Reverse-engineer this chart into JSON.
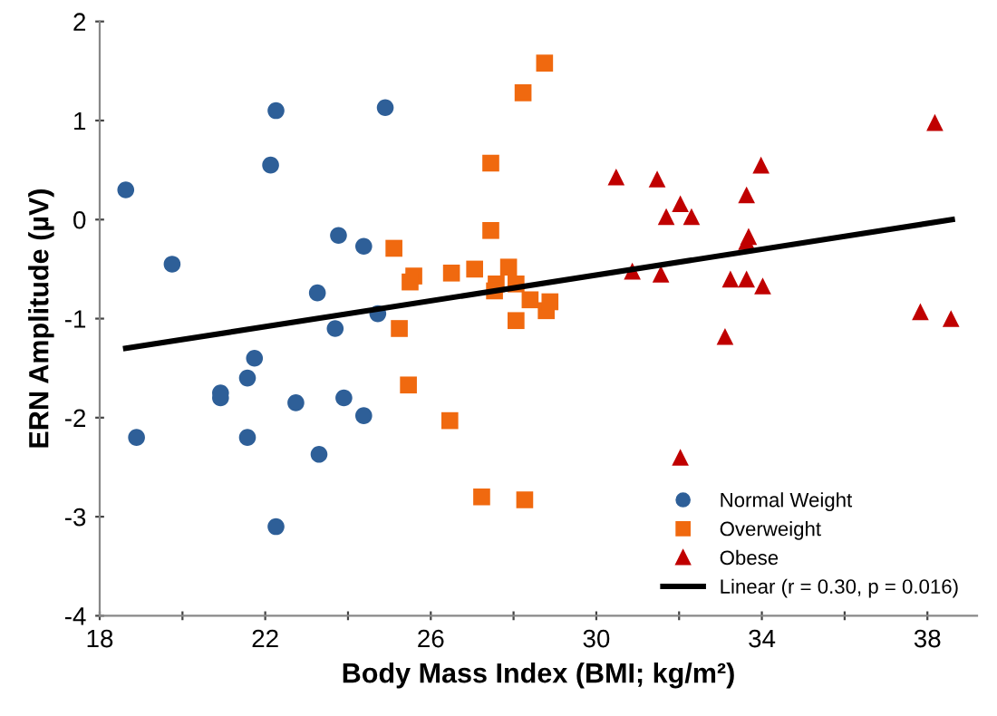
{
  "chart_data": {
    "type": "scatter",
    "xlabel": "Body Mass Index (BMI; kg/m²)",
    "ylabel": "ERN Amplitude (µV)",
    "xlim": [
      18,
      39.2
    ],
    "ylim": [
      -4,
      2
    ],
    "xticks": [
      18,
      {
        "value": 20,
        "label": null
      },
      22,
      {
        "value": 24,
        "label": null
      },
      26,
      {
        "value": 28,
        "label": null
      },
      30,
      {
        "value": 32,
        "label": null
      },
      34,
      {
        "value": 36,
        "label": null
      },
      38
    ],
    "yticks": [
      -4,
      -3,
      -2,
      -1,
      0,
      1,
      2
    ],
    "grid": false,
    "legend": "bottom right",
    "series": [
      {
        "name": "Normal Weight",
        "color": "#2e5f98",
        "marker": "circle",
        "x": [
          18.63,
          18.89,
          19.75,
          20.92,
          20.92,
          21.57,
          21.57,
          21.74,
          22.13,
          22.26,
          22.26,
          22.74,
          23.26,
          23.3,
          23.69,
          23.77,
          23.9,
          24.38,
          24.38,
          24.72,
          24.9
        ],
        "values": [
          0.3,
          -2.2,
          -0.45,
          -1.75,
          -1.8,
          -1.6,
          -2.2,
          -1.4,
          0.55,
          1.1,
          -3.1,
          -1.85,
          -0.74,
          -2.37,
          -1.1,
          -0.16,
          -1.8,
          -1.98,
          -0.27,
          -0.95,
          1.13
        ]
      },
      {
        "name": "Overweight",
        "color": "#f0690f",
        "marker": "square",
        "x": [
          28.75,
          28.23,
          27.45,
          27.45,
          25.11,
          25.59,
          25.5,
          26.5,
          27.06,
          27.88,
          27.58,
          27.54,
          28.06,
          28.4,
          28.06,
          28.79,
          28.88,
          25.24,
          25.46,
          26.46,
          27.23,
          28.27
        ],
        "values": [
          1.58,
          1.28,
          0.57,
          -0.11,
          -0.29,
          -0.57,
          -0.63,
          -0.54,
          -0.5,
          -0.48,
          -0.65,
          -0.72,
          -0.65,
          -0.81,
          -1.02,
          -0.92,
          -0.83,
          -1.1,
          -1.67,
          -2.03,
          -2.8,
          -2.83
        ]
      },
      {
        "name": "Obese",
        "color": "#c00000",
        "marker": "triangle",
        "x": [
          30.48,
          31.47,
          31.69,
          32.03,
          32.3,
          33.63,
          33.98,
          33.68,
          33.63,
          30.87,
          31.56,
          33.24,
          33.63,
          34.02,
          33.11,
          32.03,
          38.18,
          37.83,
          38.57
        ],
        "values": [
          0.43,
          0.41,
          0.03,
          0.16,
          0.03,
          0.25,
          0.55,
          -0.17,
          -0.22,
          -0.52,
          -0.55,
          -0.6,
          -0.6,
          -0.67,
          -1.18,
          -2.4,
          0.98,
          -0.93,
          -1.0
        ]
      },
      {
        "name": "Linear (r = 0.30, p = 0.016)",
        "type": "line",
        "color": "#000000",
        "marker": "none",
        "x": [
          18.63,
          38.6
        ],
        "values": [
          -1.3,
          0.0
        ]
      }
    ]
  }
}
